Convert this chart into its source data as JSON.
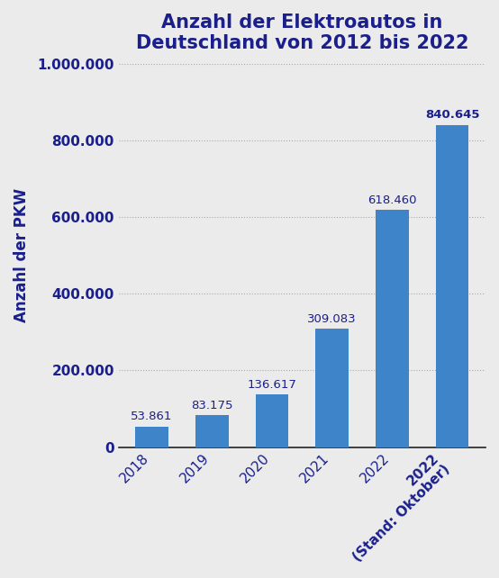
{
  "title": "Anzahl der Elektroautos in\nDeutschland von 2012 bis 2022",
  "ylabel": "Anzahl der PKW",
  "categories": [
    "2018",
    "2019",
    "2020",
    "2021",
    "2022",
    "2022\n(Stand: Oktober)"
  ],
  "categories_display": [
    "2018",
    "2019",
    "2020",
    "2021",
    "2022",
    "2022\n(Stand: Oktober)"
  ],
  "values": [
    53861,
    83175,
    136617,
    309083,
    618460,
    840645
  ],
  "labels": [
    "53.861",
    "83.175",
    "136.617",
    "309.083",
    "618.460",
    "840.645"
  ],
  "bar_color": "#3d85c8",
  "title_color": "#1a1f8c",
  "axis_label_color": "#1a1f8c",
  "tick_color": "#1a1f8c",
  "annotation_color": "#1a1f8c",
  "background_color": "#ebebeb",
  "ylim": [
    0,
    1000000
  ],
  "yticks": [
    0,
    200000,
    400000,
    600000,
    800000,
    1000000
  ],
  "ytick_labels": [
    "0",
    "200.000",
    "400.000",
    "600.000",
    "800.000",
    "1.000.000"
  ],
  "title_fontsize": 15,
  "ylabel_fontsize": 12,
  "xtick_fontsize": 11,
  "ytick_fontsize": 11,
  "annotation_fontsize": 9.5
}
